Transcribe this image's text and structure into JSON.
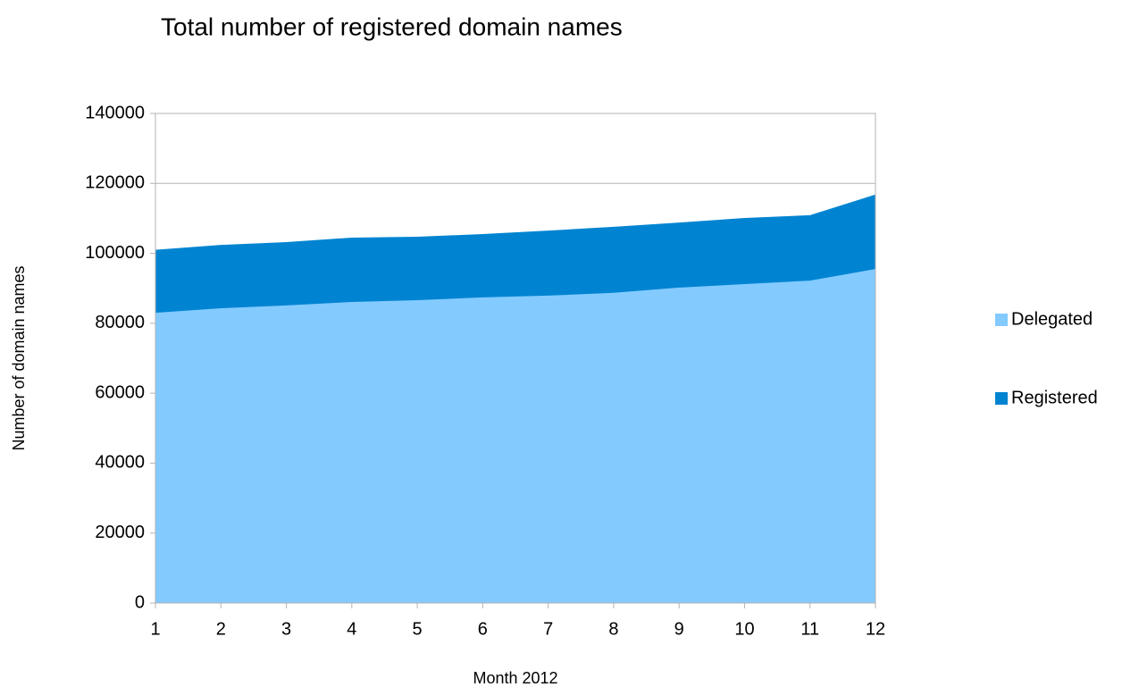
{
  "chart_data": {
    "type": "area",
    "title": "Total number of registered domain names",
    "x_label": "Month 2012",
    "y_label": "Number of domain names",
    "x": [
      1,
      2,
      3,
      4,
      5,
      6,
      7,
      8,
      9,
      10,
      11,
      12
    ],
    "series": [
      {
        "name": "Registered",
        "color": "#0084d1",
        "values": [
          101000,
          102400,
          103200,
          104500,
          104750,
          105500,
          106500,
          107600,
          108800,
          110100,
          110900,
          116800
        ]
      },
      {
        "name": "Delegated",
        "color": "#83caff",
        "values": [
          83000,
          84300,
          85100,
          86100,
          86600,
          87400,
          87900,
          88700,
          90200,
          91200,
          92200,
          95500
        ]
      }
    ],
    "legend_order": [
      "Delegated",
      "Registered"
    ],
    "xlim": [
      1,
      12
    ],
    "xticks": [
      1,
      2,
      3,
      4,
      5,
      6,
      7,
      8,
      9,
      10,
      11,
      12
    ],
    "ylim": [
      0,
      140000
    ],
    "yticks": [
      0,
      20000,
      40000,
      60000,
      80000,
      100000,
      120000,
      140000
    ],
    "grid": true,
    "legend": "right"
  }
}
